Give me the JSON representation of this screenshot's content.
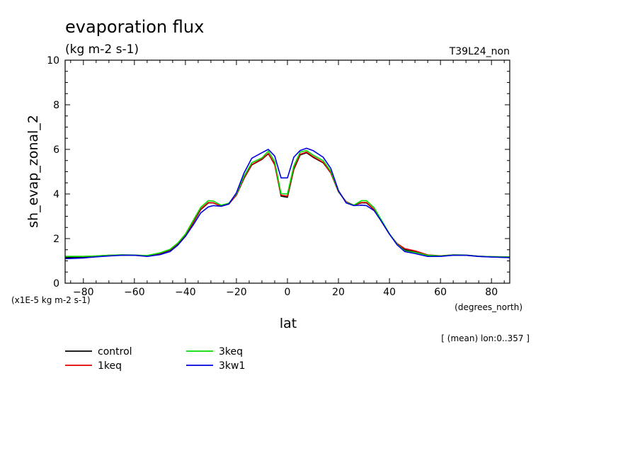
{
  "title": "evaporation flux",
  "units": "(kg m-2 s-1)",
  "run_label": "T39L24_non",
  "scale_note": "(x1E-5 kg m-2 s-1)",
  "x_unit": "(degrees_north)",
  "mean_note": "[ (mean) lon:0..357 ]",
  "chart_data": {
    "type": "line",
    "title": "evaporation flux",
    "xlabel": "lat",
    "ylabel": "sh_evap_zonal_2",
    "xlim": [
      -87.16,
      87.16
    ],
    "ylim": [
      0,
      10
    ],
    "xticks": [
      -80,
      -60,
      -40,
      -20,
      0,
      20,
      40,
      60,
      80
    ],
    "yticks": [
      0,
      2,
      4,
      6,
      8,
      10
    ],
    "grid": false,
    "legend_position": "bottom-left",
    "x": [
      -87,
      -80,
      -75,
      -70,
      -65,
      -60,
      -55,
      -50,
      -46,
      -43,
      -40,
      -37,
      -34,
      -31,
      -29,
      -26,
      -23,
      -20,
      -17,
      -14,
      -10,
      -7.5,
      -5,
      -2.5,
      0,
      2.5,
      5,
      7.5,
      10,
      14,
      17,
      20,
      23,
      26,
      29,
      31,
      34,
      37,
      40,
      43,
      46,
      50,
      55,
      60,
      65,
      70,
      75,
      80,
      87
    ],
    "series": [
      {
        "name": "control",
        "color": "#000000",
        "values": [
          1.15,
          1.17,
          1.2,
          1.24,
          1.26,
          1.25,
          1.22,
          1.32,
          1.48,
          1.75,
          2.15,
          2.7,
          3.3,
          3.6,
          3.6,
          3.45,
          3.55,
          3.95,
          4.7,
          5.3,
          5.55,
          5.8,
          5.35,
          3.9,
          3.85,
          5.1,
          5.75,
          5.85,
          5.65,
          5.4,
          4.95,
          4.1,
          3.65,
          3.5,
          3.6,
          3.6,
          3.3,
          2.75,
          2.2,
          1.75,
          1.5,
          1.4,
          1.25,
          1.22,
          1.26,
          1.25,
          1.2,
          1.18,
          1.15
        ]
      },
      {
        "name": "1keq",
        "color": "#e00000",
        "values": [
          1.2,
          1.2,
          1.22,
          1.25,
          1.27,
          1.26,
          1.23,
          1.34,
          1.5,
          1.77,
          2.15,
          2.72,
          3.32,
          3.62,
          3.6,
          3.45,
          3.55,
          3.95,
          4.72,
          5.32,
          5.57,
          5.82,
          5.3,
          3.95,
          3.9,
          5.15,
          5.78,
          5.88,
          5.68,
          5.42,
          4.95,
          4.1,
          3.65,
          3.5,
          3.62,
          3.62,
          3.3,
          2.75,
          2.2,
          1.78,
          1.55,
          1.45,
          1.27,
          1.23,
          1.27,
          1.26,
          1.21,
          1.19,
          1.18
        ]
      },
      {
        "name": "3keq",
        "color": "#00dd00",
        "values": [
          1.2,
          1.2,
          1.22,
          1.25,
          1.27,
          1.26,
          1.24,
          1.36,
          1.52,
          1.8,
          2.2,
          2.8,
          3.4,
          3.7,
          3.68,
          3.5,
          3.58,
          4.0,
          4.8,
          5.4,
          5.62,
          5.92,
          5.45,
          4.02,
          4.0,
          5.25,
          5.88,
          5.95,
          5.75,
          5.5,
          5.02,
          4.12,
          3.62,
          3.5,
          3.7,
          3.7,
          3.38,
          2.8,
          2.22,
          1.75,
          1.45,
          1.38,
          1.25,
          1.22,
          1.27,
          1.26,
          1.21,
          1.19,
          1.17
        ]
      },
      {
        "name": "3kw1",
        "color": "#0000dd",
        "values": [
          1.1,
          1.13,
          1.18,
          1.22,
          1.25,
          1.25,
          1.2,
          1.28,
          1.42,
          1.7,
          2.1,
          2.6,
          3.15,
          3.42,
          3.48,
          3.45,
          3.55,
          4.05,
          4.95,
          5.6,
          5.85,
          6.0,
          5.7,
          4.72,
          4.72,
          5.65,
          5.95,
          6.05,
          5.95,
          5.65,
          5.15,
          4.15,
          3.6,
          3.48,
          3.5,
          3.48,
          3.25,
          2.75,
          2.2,
          1.72,
          1.42,
          1.33,
          1.2,
          1.2,
          1.25,
          1.25,
          1.2,
          1.17,
          1.15
        ]
      }
    ]
  }
}
